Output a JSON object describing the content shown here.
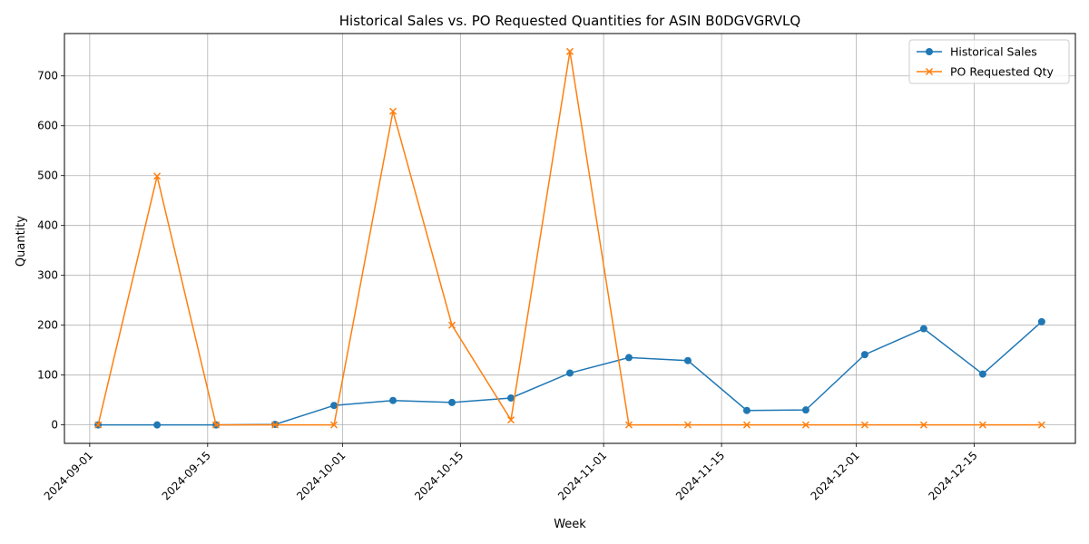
{
  "chart_data": {
    "type": "line",
    "title": "Historical Sales vs. PO Requested Quantities for ASIN B0DGVGRVLQ",
    "xlabel": "Week",
    "ylabel": "Quantity",
    "x_type": "date",
    "x": [
      "2024-09-02",
      "2024-09-09",
      "2024-09-16",
      "2024-09-23",
      "2024-09-30",
      "2024-10-07",
      "2024-10-14",
      "2024-10-21",
      "2024-10-28",
      "2024-11-04",
      "2024-11-11",
      "2024-11-18",
      "2024-11-25",
      "2024-12-02",
      "2024-12-09",
      "2024-12-16",
      "2024-12-23"
    ],
    "xlim": [
      "2024-08-29",
      "2024-12-27"
    ],
    "x_ticks": [
      "2024-09-01",
      "2024-09-15",
      "2024-10-01",
      "2024-10-15",
      "2024-11-01",
      "2024-11-15",
      "2024-12-01",
      "2024-12-15"
    ],
    "ylim": [
      -37,
      785
    ],
    "y_ticks": [
      0,
      100,
      200,
      300,
      400,
      500,
      600,
      700
    ],
    "grid": true,
    "legend_position": "top-right",
    "series": [
      {
        "name": "Historical Sales",
        "color": "#1f77b4",
        "marker": "circle",
        "values": [
          0,
          0,
          0,
          1,
          39,
          49,
          45,
          54,
          104,
          135,
          129,
          29,
          30,
          141,
          193,
          102,
          207
        ]
      },
      {
        "name": "PO Requested Qty",
        "color": "#ff7f0e",
        "marker": "x",
        "values": [
          0,
          499,
          0,
          0,
          0,
          629,
          200,
          10,
          749,
          0,
          0,
          0,
          0,
          0,
          0,
          0,
          0
        ]
      }
    ]
  }
}
